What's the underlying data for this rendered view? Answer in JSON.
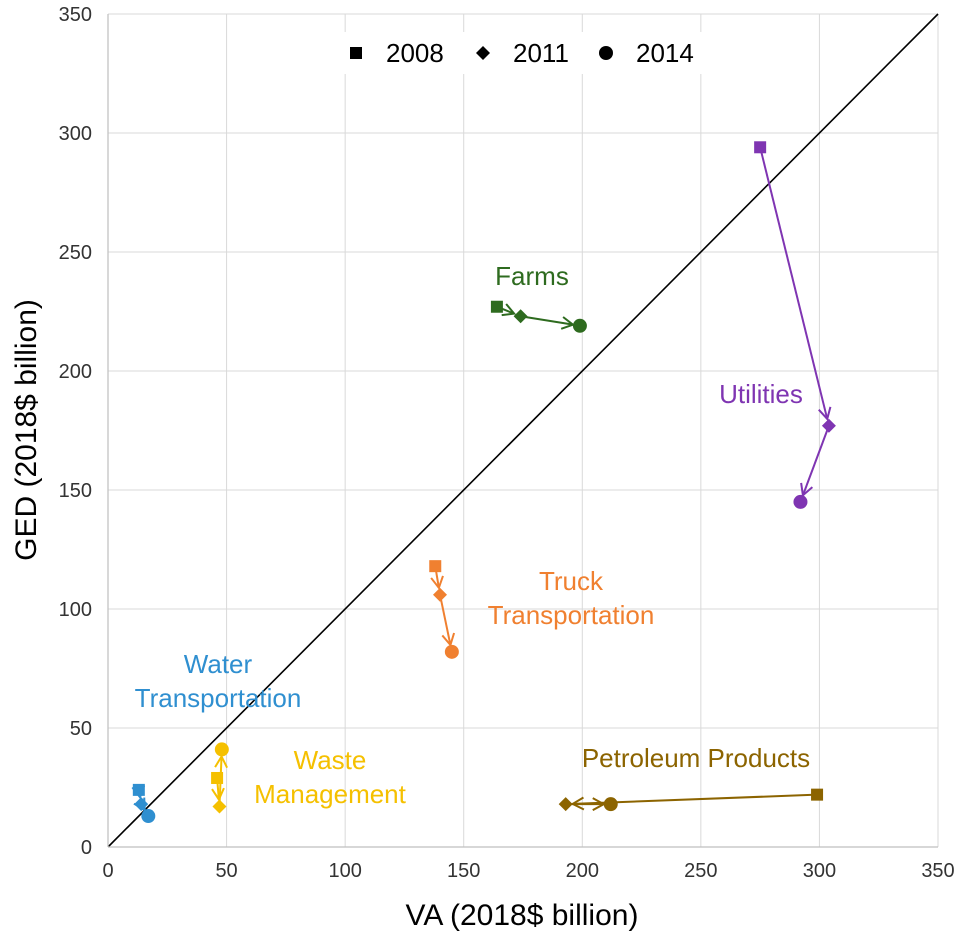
{
  "chart_data": {
    "type": "scatter",
    "title": "",
    "xlabel": "VA (2018$ billion)",
    "ylabel": "GED (2018$ billion)",
    "xlim": [
      0,
      350
    ],
    "ylim": [
      0,
      350
    ],
    "xticks": [
      0,
      50,
      100,
      150,
      200,
      250,
      300,
      350
    ],
    "yticks": [
      0,
      50,
      100,
      150,
      200,
      250,
      300,
      350
    ],
    "grid": true,
    "reference_line": {
      "from": [
        0,
        0
      ],
      "to": [
        350,
        350
      ],
      "color": "#000000"
    },
    "legend": {
      "placement": "top-center",
      "entries": [
        {
          "marker": "square",
          "label": "2008"
        },
        {
          "marker": "diamond",
          "label": "2011"
        },
        {
          "marker": "circle",
          "label": "2014"
        }
      ]
    },
    "series": [
      {
        "name": "Farms",
        "label_lines": [
          "Farms"
        ],
        "color": "#2e6b1f",
        "points": [
          {
            "year": "2008",
            "marker": "square",
            "x": 164,
            "y": 227
          },
          {
            "year": "2011",
            "marker": "diamond",
            "x": 174,
            "y": 223
          },
          {
            "year": "2014",
            "marker": "circle",
            "x": 199,
            "y": 219
          }
        ]
      },
      {
        "name": "Utilities",
        "label_lines": [
          "Utilities"
        ],
        "color": "#7f35b2",
        "points": [
          {
            "year": "2008",
            "marker": "square",
            "x": 275,
            "y": 294
          },
          {
            "year": "2011",
            "marker": "diamond",
            "x": 304,
            "y": 177
          },
          {
            "year": "2014",
            "marker": "circle",
            "x": 292,
            "y": 145
          }
        ]
      },
      {
        "name": "Truck Transportation",
        "label_lines": [
          "Truck",
          "Transportation"
        ],
        "color": "#f08030",
        "points": [
          {
            "year": "2008",
            "marker": "square",
            "x": 138,
            "y": 118
          },
          {
            "year": "2011",
            "marker": "diamond",
            "x": 140,
            "y": 106
          },
          {
            "year": "2014",
            "marker": "circle",
            "x": 145,
            "y": 82
          }
        ]
      },
      {
        "name": "Water Transportation",
        "label_lines": [
          "Water",
          "Transportation"
        ],
        "color": "#2f8fd0",
        "points": [
          {
            "year": "2008",
            "marker": "square",
            "x": 13,
            "y": 24
          },
          {
            "year": "2011",
            "marker": "diamond",
            "x": 14,
            "y": 18
          },
          {
            "year": "2014",
            "marker": "circle",
            "x": 17,
            "y": 13
          }
        ]
      },
      {
        "name": "Waste Management",
        "label_lines": [
          "Waste",
          "Management"
        ],
        "color": "#f5c000",
        "points": [
          {
            "year": "2008",
            "marker": "square",
            "x": 46,
            "y": 29
          },
          {
            "year": "2011",
            "marker": "diamond",
            "x": 47,
            "y": 17
          },
          {
            "year": "2014",
            "marker": "circle",
            "x": 48,
            "y": 41
          }
        ]
      },
      {
        "name": "Petroleum Products",
        "label_lines": [
          "Petroleum Products"
        ],
        "color": "#8c6400",
        "points": [
          {
            "year": "2008",
            "marker": "square",
            "x": 299,
            "y": 22
          },
          {
            "year": "2011",
            "marker": "diamond",
            "x": 193,
            "y": 18
          },
          {
            "year": "2014",
            "marker": "circle",
            "x": 212,
            "y": 18
          }
        ]
      }
    ]
  }
}
